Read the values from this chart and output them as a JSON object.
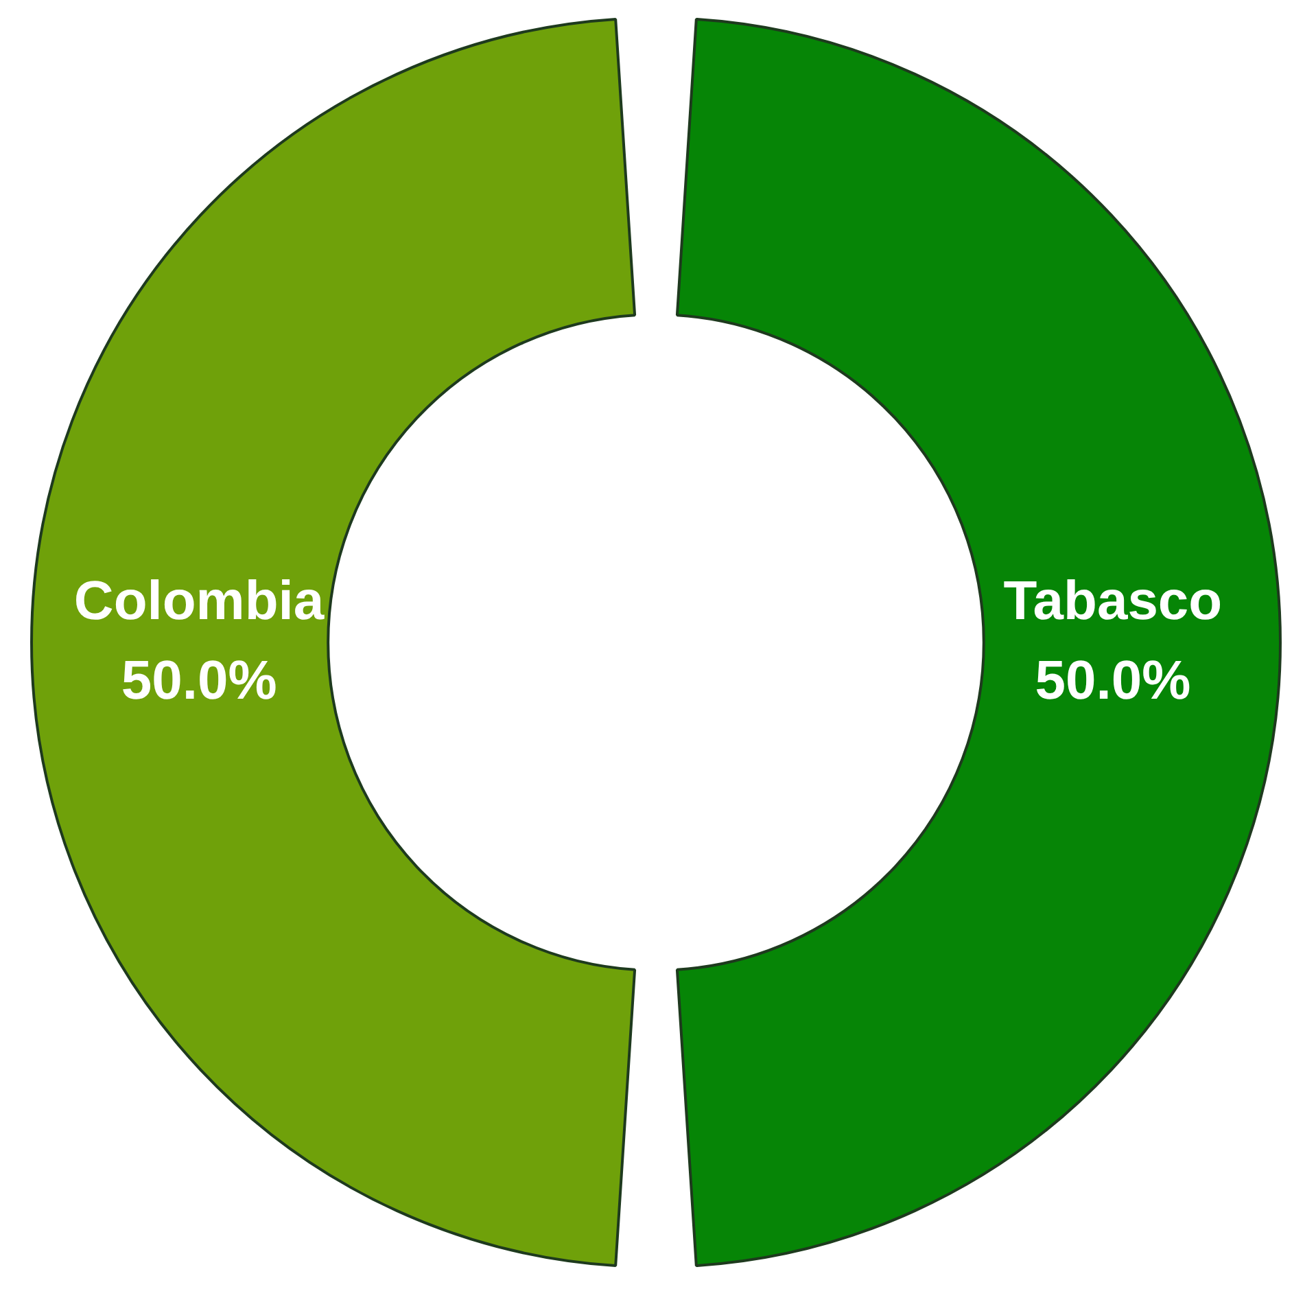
{
  "chart_data": {
    "type": "donut",
    "categories": [
      "Tabasco",
      "Colombia"
    ],
    "values": [
      50,
      50
    ],
    "colors": [
      "#068506",
      "#6fa10a"
    ],
    "value_labels": [
      "50.0%",
      "50.0%"
    ],
    "legend": false
  }
}
